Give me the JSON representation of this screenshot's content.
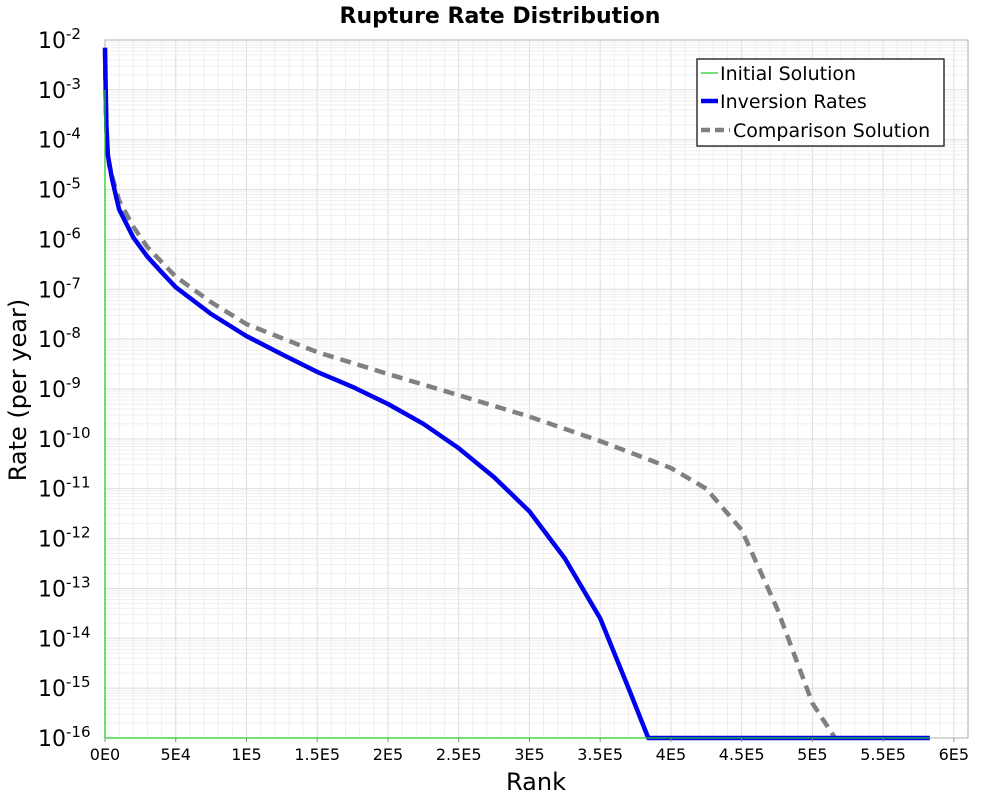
{
  "chart_data": {
    "type": "line",
    "title": "Rupture Rate Distribution",
    "xlabel": "Rank",
    "ylabel": "Rate (per year)",
    "xlim": [
      0,
      610000
    ],
    "ylim": [
      1e-16,
      0.01
    ],
    "yscale": "log",
    "grid": true,
    "legend_position": "top-right",
    "x_ticks": [
      {
        "value": 0,
        "label": "0E0"
      },
      {
        "value": 50000,
        "label": "5E4"
      },
      {
        "value": 100000,
        "label": "1E5"
      },
      {
        "value": 150000,
        "label": "1.5E5"
      },
      {
        "value": 200000,
        "label": "2E5"
      },
      {
        "value": 250000,
        "label": "2.5E5"
      },
      {
        "value": 300000,
        "label": "3E5"
      },
      {
        "value": 350000,
        "label": "3.5E5"
      },
      {
        "value": 400000,
        "label": "4E5"
      },
      {
        "value": 450000,
        "label": "4.5E5"
      },
      {
        "value": 500000,
        "label": "5E5"
      },
      {
        "value": 550000,
        "label": "5.5E5"
      },
      {
        "value": 600000,
        "label": "6E5"
      }
    ],
    "y_ticks": [
      {
        "value": 0.01,
        "base": "10",
        "exp": "-2"
      },
      {
        "value": 0.001,
        "base": "10",
        "exp": "-3"
      },
      {
        "value": 0.0001,
        "base": "10",
        "exp": "-4"
      },
      {
        "value": 1e-05,
        "base": "10",
        "exp": "-5"
      },
      {
        "value": 1e-06,
        "base": "10",
        "exp": "-6"
      },
      {
        "value": 1e-07,
        "base": "10",
        "exp": "-7"
      },
      {
        "value": 1e-08,
        "base": "10",
        "exp": "-8"
      },
      {
        "value": 1e-09,
        "base": "10",
        "exp": "-9"
      },
      {
        "value": 1e-10,
        "base": "10",
        "exp": "-10"
      },
      {
        "value": 1e-11,
        "base": "10",
        "exp": "-11"
      },
      {
        "value": 1e-12,
        "base": "10",
        "exp": "-12"
      },
      {
        "value": 1e-13,
        "base": "10",
        "exp": "-13"
      },
      {
        "value": 1e-14,
        "base": "10",
        "exp": "-14"
      },
      {
        "value": 1e-15,
        "base": "10",
        "exp": "-15"
      },
      {
        "value": 1e-16,
        "base": "10",
        "exp": "-16"
      }
    ],
    "series": [
      {
        "name": "Initial Solution",
        "color": "#22cc22",
        "style": "thin-solid",
        "points": [
          [
            0,
            0.001
          ],
          [
            0,
            1e-16
          ],
          [
            583000,
            1e-16
          ]
        ]
      },
      {
        "name": "Inversion Rates",
        "color": "#0000ee",
        "style": "thick-solid",
        "points": [
          [
            0,
            0.007
          ],
          [
            500,
            0.001
          ],
          [
            1000,
            0.0002
          ],
          [
            2000,
            5e-05
          ],
          [
            5000,
            1.6e-05
          ],
          [
            10000,
            4e-06
          ],
          [
            20000,
            1.1e-06
          ],
          [
            30000,
            4.5e-07
          ],
          [
            40000,
            2.2e-07
          ],
          [
            50000,
            1.1e-07
          ],
          [
            75000,
            3.2e-08
          ],
          [
            100000,
            1.15e-08
          ],
          [
            125000,
            5e-09
          ],
          [
            150000,
            2.2e-09
          ],
          [
            175000,
            1.1e-09
          ],
          [
            200000,
            5e-10
          ],
          [
            225000,
            2e-10
          ],
          [
            250000,
            6.5e-11
          ],
          [
            275000,
            1.7e-11
          ],
          [
            300000,
            3.5e-12
          ],
          [
            325000,
            4e-13
          ],
          [
            350000,
            2.5e-14
          ],
          [
            370000,
            1e-15
          ],
          [
            384000,
            1e-16
          ],
          [
            583000,
            1e-16
          ]
        ]
      },
      {
        "name": "Comparison Solution",
        "color": "#808080",
        "style": "thick-dashed",
        "points": [
          [
            0,
            0.006
          ],
          [
            1000,
            0.0001
          ],
          [
            3000,
            3e-05
          ],
          [
            10000,
            6e-06
          ],
          [
            20000,
            1.8e-06
          ],
          [
            30000,
            7e-07
          ],
          [
            50000,
            1.8e-07
          ],
          [
            75000,
            5.5e-08
          ],
          [
            100000,
            2e-08
          ],
          [
            150000,
            5.5e-09
          ],
          [
            200000,
            2e-09
          ],
          [
            250000,
            7.5e-10
          ],
          [
            300000,
            2.8e-10
          ],
          [
            350000,
            9e-11
          ],
          [
            400000,
            2.6e-11
          ],
          [
            425000,
            1e-11
          ],
          [
            450000,
            1.5e-12
          ],
          [
            475000,
            4e-14
          ],
          [
            500000,
            5e-16
          ],
          [
            516000,
            1e-16
          ]
        ]
      }
    ]
  }
}
